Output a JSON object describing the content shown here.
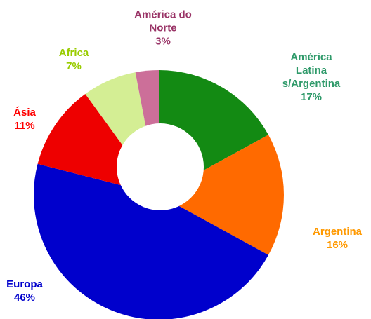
{
  "chart_data": {
    "type": "donut",
    "categories": [
      "América Latina s/Argentina",
      "Argentina",
      "Europa",
      "Ásia",
      "Africa",
      "América do Norte"
    ],
    "values": [
      17,
      16,
      46,
      11,
      7,
      3
    ],
    "value_labels": [
      "17%",
      "16%",
      "46%",
      "11%",
      "7%",
      "3%"
    ],
    "colors": [
      "#138a13",
      "#ff6a00",
      "#0000cc",
      "#ee0000",
      "#d4ee94",
      "#cc6f99"
    ],
    "label_colors": [
      "#2f9a6a",
      "#ff9900",
      "#0000cc",
      "#ff0000",
      "#99cc00",
      "#993366"
    ]
  }
}
